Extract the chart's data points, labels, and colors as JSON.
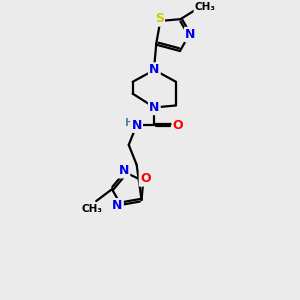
{
  "bg_color": "#ebebeb",
  "bond_color": "#000000",
  "atom_colors": {
    "N": "#0000ee",
    "O": "#ff0000",
    "S": "#cccc00",
    "C": "#000000",
    "H": "#4d8899"
  },
  "figsize": [
    3.0,
    3.0
  ],
  "dpi": 100,
  "lw": 1.6,
  "fs": 9,
  "fs_small": 7.5
}
